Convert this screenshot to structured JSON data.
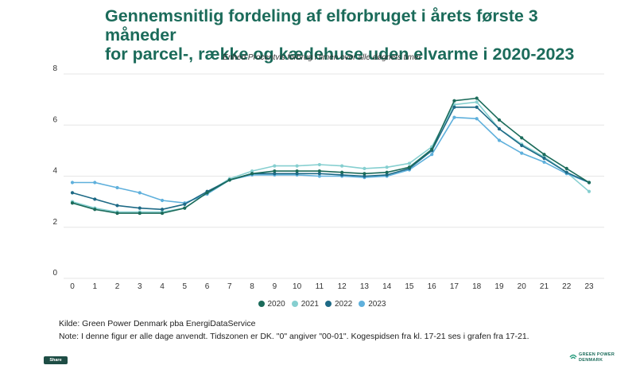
{
  "header": {
    "title_line1": "Gennemsnitlig fordeling af elforbruget i årets første 3 måneder",
    "title_line2": "for parcel-, række og kædehuse uden elvarme i 2020-2023",
    "subtitle": "Enhed:Procentvis forbrug i timen over alle døgnets timer"
  },
  "chart_data": {
    "type": "line",
    "title": "Gennemsnitlig fordeling af elforbruget i årets første 3 måneder for parcel-, række og kædehuse uden elvarme i 2020-2023",
    "subtitle": "Enhed:Procentvis forbrug i timen over alle døgnets timer",
    "x": [
      "0",
      "1",
      "2",
      "3",
      "4",
      "5",
      "6",
      "7",
      "8",
      "9",
      "10",
      "11",
      "12",
      "13",
      "14",
      "15",
      "16",
      "17",
      "18",
      "19",
      "20",
      "21",
      "22",
      "23"
    ],
    "ylim": [
      0,
      8
    ],
    "yticks": [
      0,
      2,
      4,
      6,
      8
    ],
    "grid": true,
    "legend_position": "bottom",
    "series": [
      {
        "name": "2020",
        "color": "#1b6b5a",
        "values": [
          2.95,
          2.7,
          2.55,
          2.55,
          2.55,
          2.75,
          3.35,
          3.85,
          4.1,
          4.2,
          4.2,
          4.2,
          4.15,
          4.1,
          4.15,
          4.35,
          5.05,
          6.95,
          7.05,
          6.2,
          5.5,
          4.85,
          4.3,
          3.75
        ]
      },
      {
        "name": "2021",
        "color": "#86cfd0",
        "values": [
          3.0,
          2.75,
          2.6,
          2.6,
          2.6,
          2.75,
          3.35,
          3.9,
          4.2,
          4.4,
          4.4,
          4.45,
          4.4,
          4.3,
          4.35,
          4.5,
          5.15,
          6.8,
          6.9,
          5.85,
          5.25,
          4.75,
          4.15,
          3.4
        ]
      },
      {
        "name": "2022",
        "color": "#1e6a86",
        "values": [
          3.35,
          3.1,
          2.85,
          2.75,
          2.7,
          2.9,
          3.4,
          3.85,
          4.1,
          4.1,
          4.1,
          4.1,
          4.05,
          4.0,
          4.05,
          4.3,
          5.0,
          6.7,
          6.7,
          5.85,
          5.2,
          4.7,
          4.15,
          3.75
        ]
      },
      {
        "name": "2023",
        "color": "#5fb0dc",
        "values": [
          3.75,
          3.75,
          3.55,
          3.35,
          3.05,
          2.95,
          3.3,
          3.85,
          4.05,
          4.05,
          4.05,
          4.0,
          4.0,
          3.95,
          4.0,
          4.25,
          4.85,
          6.3,
          6.25,
          5.4,
          4.9,
          4.55,
          4.1,
          3.75
        ]
      }
    ]
  },
  "footer": {
    "source": "Kilde: Green Power Denmark pba EnergiDataService",
    "note": "Note: I denne figur er alle dage anvendt. Tidszonen er DK. \"0\" angiver \"00-01\". Kogespidsen fra kl. 17-21 ses i grafen fra 17-21.",
    "share_label": "Share",
    "brand_line1": "GREEN POWER",
    "brand_line2": "DENMARK"
  }
}
